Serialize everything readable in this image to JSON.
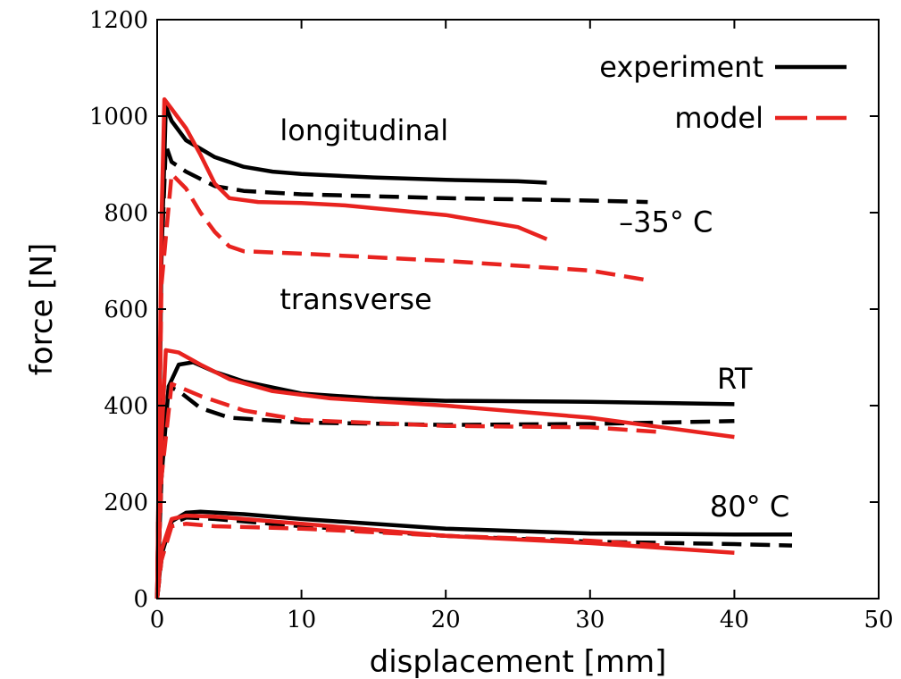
{
  "chart_data": {
    "type": "line",
    "xlabel": "displacement [mm]",
    "ylabel": "force [N]",
    "xlim": [
      0,
      50
    ],
    "ylim": [
      0,
      1200
    ],
    "xticks": [
      0,
      10,
      20,
      30,
      40,
      50
    ],
    "yticks": [
      0,
      200,
      400,
      600,
      800,
      1000,
      1200
    ],
    "grid": false,
    "legend_position": "top-right",
    "legend": [
      {
        "label": "experiment",
        "color": "#000000",
        "style": "solid"
      },
      {
        "label": "model",
        "color": "#e8231f",
        "style": "dashed"
      }
    ],
    "annotations": [
      {
        "text": "longitudinal",
        "x": 8.5,
        "y": 950
      },
      {
        "text": "–35° C",
        "x": 32,
        "y": 760
      },
      {
        "text": "transverse",
        "x": 8.5,
        "y": 600
      },
      {
        "text": "RT",
        "x": 38.8,
        "y": 435
      },
      {
        "text": "80° C",
        "x": 38.3,
        "y": 170
      }
    ],
    "series": [
      {
        "color": "#000000",
        "dash": "solid",
        "points": [
          [
            0,
            0
          ],
          [
            0.3,
            700
          ],
          [
            0.6,
            1020
          ],
          [
            1,
            990
          ],
          [
            2,
            950
          ],
          [
            4,
            915
          ],
          [
            6,
            895
          ],
          [
            8,
            885
          ],
          [
            10,
            880
          ],
          [
            15,
            873
          ],
          [
            20,
            868
          ],
          [
            25,
            865
          ],
          [
            27,
            862
          ]
        ]
      },
      {
        "color": "#000000",
        "dash": "dashed",
        "points": [
          [
            0,
            0
          ],
          [
            0.3,
            700
          ],
          [
            0.6,
            940
          ],
          [
            1,
            905
          ],
          [
            2,
            885
          ],
          [
            4,
            855
          ],
          [
            6,
            845
          ],
          [
            10,
            838
          ],
          [
            20,
            830
          ],
          [
            30,
            825
          ],
          [
            34,
            822
          ]
        ]
      },
      {
        "color": "#e8231f",
        "dash": "solid",
        "points": [
          [
            0,
            0
          ],
          [
            0.3,
            780
          ],
          [
            0.5,
            1035
          ],
          [
            1,
            1015
          ],
          [
            2,
            975
          ],
          [
            3,
            920
          ],
          [
            4,
            860
          ],
          [
            5,
            830
          ],
          [
            7,
            822
          ],
          [
            10,
            820
          ],
          [
            13,
            815
          ],
          [
            20,
            795
          ],
          [
            25,
            770
          ],
          [
            27,
            745
          ]
        ]
      },
      {
        "color": "#e8231f",
        "dash": "dashed",
        "points": [
          [
            0,
            0
          ],
          [
            0.3,
            650
          ],
          [
            1,
            880
          ],
          [
            2,
            850
          ],
          [
            3,
            800
          ],
          [
            4,
            760
          ],
          [
            5,
            730
          ],
          [
            6,
            720
          ],
          [
            10,
            715
          ],
          [
            20,
            700
          ],
          [
            30,
            680
          ],
          [
            34,
            660
          ]
        ]
      },
      {
        "color": "#000000",
        "dash": "solid",
        "points": [
          [
            0,
            0
          ],
          [
            0.3,
            250
          ],
          [
            0.8,
            440
          ],
          [
            1.5,
            485
          ],
          [
            2.5,
            490
          ],
          [
            4,
            470
          ],
          [
            6,
            450
          ],
          [
            10,
            425
          ],
          [
            15,
            415
          ],
          [
            20,
            410
          ],
          [
            30,
            408
          ],
          [
            40,
            403
          ]
        ]
      },
      {
        "color": "#000000",
        "dash": "dashed",
        "points": [
          [
            0,
            0
          ],
          [
            0.3,
            250
          ],
          [
            0.8,
            440
          ],
          [
            1.5,
            430
          ],
          [
            3,
            395
          ],
          [
            5,
            375
          ],
          [
            10,
            365
          ],
          [
            20,
            360
          ],
          [
            30,
            362
          ],
          [
            40,
            368
          ]
        ]
      },
      {
        "color": "#e8231f",
        "dash": "solid",
        "points": [
          [
            0,
            0
          ],
          [
            0.3,
            330
          ],
          [
            0.6,
            515
          ],
          [
            1.5,
            510
          ],
          [
            3,
            485
          ],
          [
            5,
            455
          ],
          [
            8,
            430
          ],
          [
            12,
            415
          ],
          [
            20,
            400
          ],
          [
            30,
            375
          ],
          [
            35,
            355
          ],
          [
            40,
            335
          ]
        ]
      },
      {
        "color": "#e8231f",
        "dash": "dashed",
        "points": [
          [
            0,
            0
          ],
          [
            0.3,
            250
          ],
          [
            1,
            445
          ],
          [
            3,
            420
          ],
          [
            6,
            390
          ],
          [
            10,
            370
          ],
          [
            20,
            358
          ],
          [
            30,
            355
          ],
          [
            35,
            345
          ]
        ]
      },
      {
        "color": "#000000",
        "dash": "solid",
        "points": [
          [
            0,
            0
          ],
          [
            0.3,
            90
          ],
          [
            1,
            160
          ],
          [
            2,
            178
          ],
          [
            3,
            180
          ],
          [
            6,
            175
          ],
          [
            10,
            165
          ],
          [
            20,
            145
          ],
          [
            30,
            135
          ],
          [
            40,
            133
          ],
          [
            44,
            133
          ]
        ]
      },
      {
        "color": "#000000",
        "dash": "dashed",
        "points": [
          [
            0,
            0
          ],
          [
            0.3,
            80
          ],
          [
            1,
            155
          ],
          [
            2,
            168
          ],
          [
            4,
            165
          ],
          [
            10,
            150
          ],
          [
            20,
            130
          ],
          [
            30,
            118
          ],
          [
            40,
            113
          ],
          [
            44,
            110
          ]
        ]
      },
      {
        "color": "#e8231f",
        "dash": "solid",
        "points": [
          [
            0,
            0
          ],
          [
            0.3,
            100
          ],
          [
            1,
            165
          ],
          [
            2,
            172
          ],
          [
            4,
            170
          ],
          [
            10,
            155
          ],
          [
            20,
            130
          ],
          [
            30,
            115
          ],
          [
            35,
            105
          ],
          [
            40,
            95
          ]
        ]
      },
      {
        "color": "#e8231f",
        "dash": "dashed",
        "points": [
          [
            0,
            0
          ],
          [
            0.3,
            80
          ],
          [
            1,
            150
          ],
          [
            2,
            155
          ],
          [
            4,
            150
          ],
          [
            10,
            145
          ],
          [
            20,
            130
          ],
          [
            30,
            120
          ],
          [
            35,
            110
          ]
        ]
      }
    ]
  }
}
